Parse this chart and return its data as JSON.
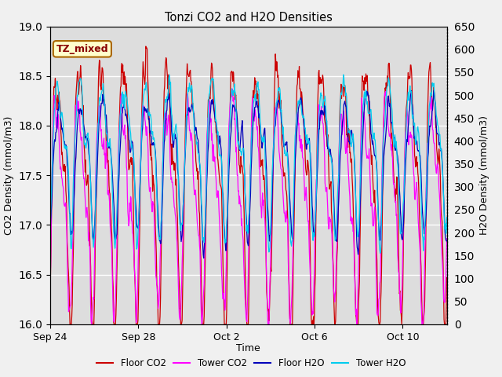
{
  "title": "Tonzi CO2 and H2O Densities",
  "xlabel": "Time",
  "ylabel_left": "CO2 Density (mmol/m3)",
  "ylabel_right": "H2O Density (mmol/m3)",
  "annotation_text": "TZ_mixed",
  "annotation_bg": "#ffffcc",
  "annotation_border": "#aa6600",
  "ylim_left": [
    16.0,
    19.0
  ],
  "ylim_right": [
    0,
    650
  ],
  "fig_bg": "#f0f0f0",
  "plot_bg": "#dddddd",
  "legend_entries": [
    "Floor CO2",
    "Tower CO2",
    "Floor H2O",
    "Tower H2O"
  ],
  "colors": {
    "floor_co2": "#cc0000",
    "tower_co2": "#ff00ff",
    "floor_h2o": "#0000bb",
    "tower_h2o": "#00ccee"
  },
  "xtick_labels": [
    "Sep 24",
    "Sep 28",
    "Oct 2",
    "Oct 6",
    "Oct 10"
  ],
  "xtick_positions": [
    0,
    4,
    8,
    12,
    16
  ],
  "n_days": 18,
  "seed": 42
}
